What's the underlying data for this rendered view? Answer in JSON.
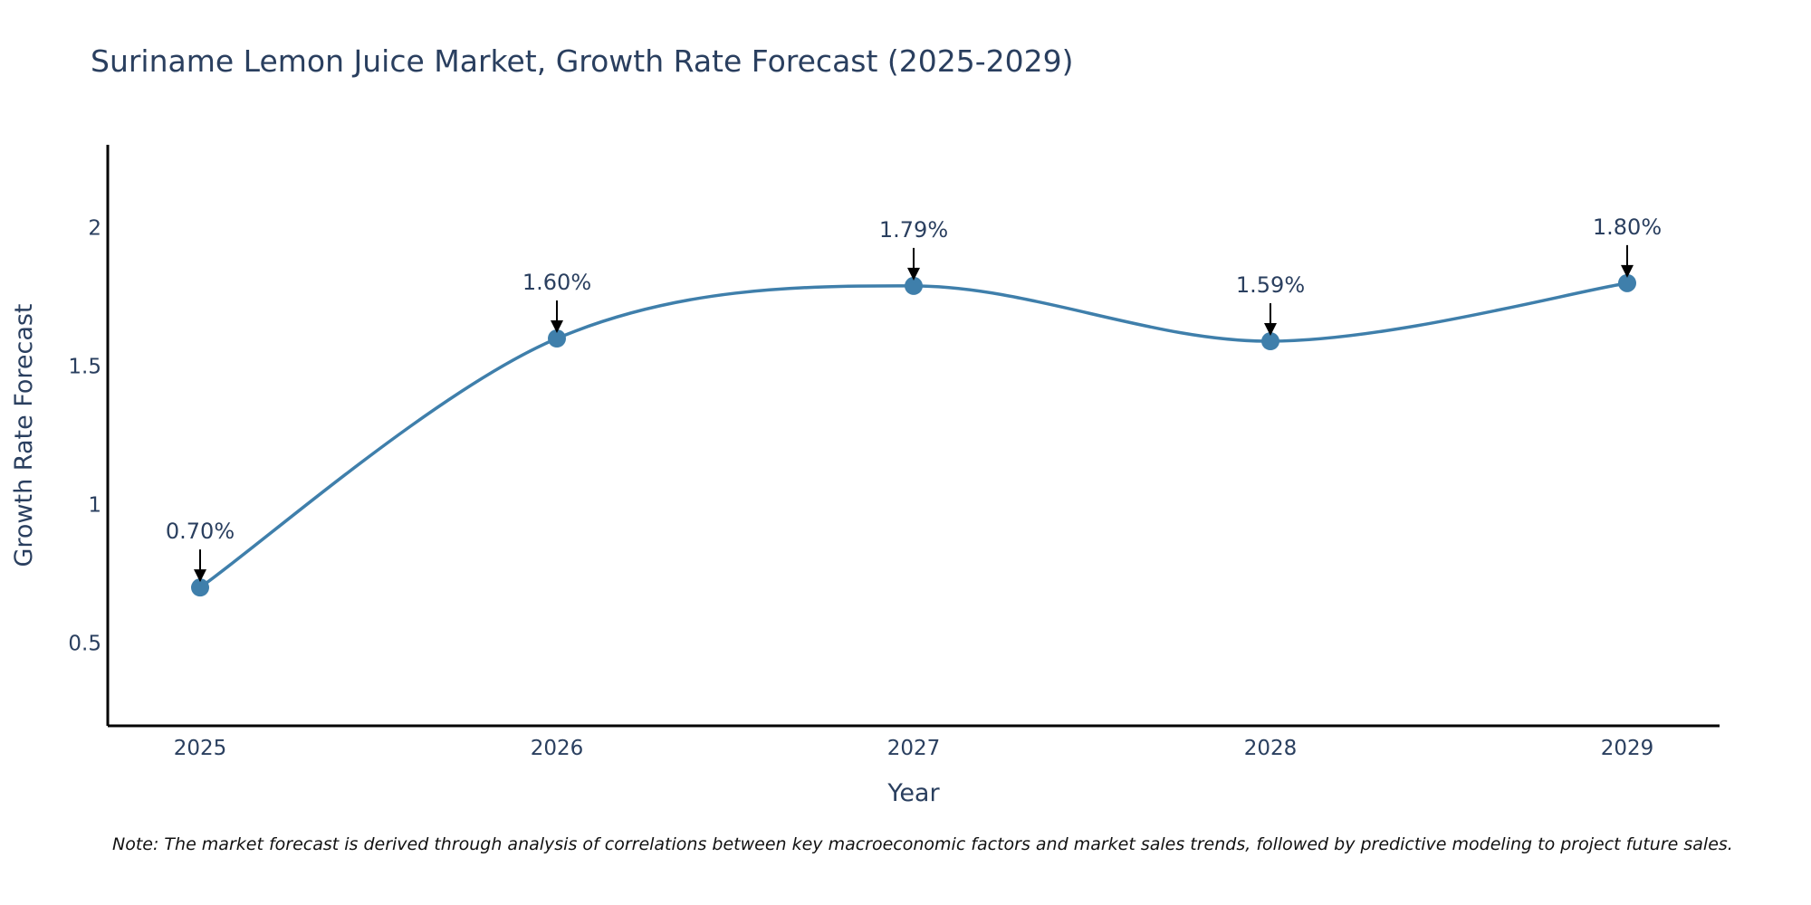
{
  "chart_data": {
    "type": "line",
    "title": "Suriname Lemon Juice Market, Growth Rate Forecast (2025-2029)",
    "xlabel": "Year",
    "ylabel": "Growth Rate Forecast",
    "categories": [
      "2025",
      "2026",
      "2027",
      "2028",
      "2029"
    ],
    "values": [
      0.7,
      1.6,
      1.79,
      1.59,
      1.8
    ],
    "data_labels": [
      "0.70%",
      "1.60%",
      "1.79%",
      "1.59%",
      "1.80%"
    ],
    "ylim": [
      0.2,
      2.3
    ],
    "yticks": [
      0.5,
      1,
      1.5,
      2
    ],
    "ytick_labels": [
      "0.5",
      "1",
      "1.5",
      "2"
    ],
    "grid": false,
    "line_shape": "spline",
    "colors": {
      "line": "#3f7fab",
      "marker": "#3f7fab",
      "axis": "#000000",
      "text": "#2a3f5f",
      "arrow": "#000000"
    },
    "note": "Note: The market forecast is derived through analysis of correlations between key macroeconomic factors and market sales trends, followed by predictive modeling to project future sales."
  }
}
